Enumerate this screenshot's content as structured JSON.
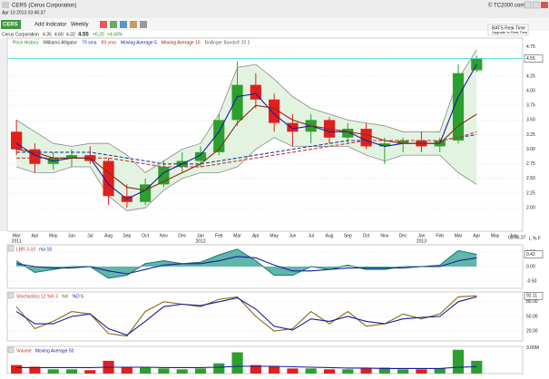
{
  "header": {
    "title": "CERS (Cerus Corporation)",
    "timestamp": "Apr 10 2013 03:45:37",
    "copyright": "© TC2000.com",
    "symbol": "CERS",
    "add_indicator": "Add Indicator",
    "period": "Weekly",
    "quote": {
      "name": "Cerus Corporation",
      "open": "4.35",
      "high": "4.60",
      "low": "4.32",
      "last": "4.55",
      "change": "+0.20",
      "change_pct": "+4.60%"
    },
    "feed": "BATS Real-Time",
    "feed_note": "Upgrade to Real-Time",
    "chart_time": "03:45:37",
    "scale_controls": "L % F"
  },
  "chart_data": [
    {
      "type": "candlestick",
      "other_indicators": [
        "Williams Alligator"
      ],
      "categories": [
        "Mar",
        "Apr",
        "May",
        "Jun",
        "Jul",
        "Aug",
        "Sep",
        "Oct",
        "Nov",
        "Dec",
        "Jan",
        "Feb",
        "Mar",
        "Apr",
        "May",
        "Jun",
        "Jul",
        "Aug",
        "Sep",
        "Oct",
        "Nov",
        "Dec",
        "Jan",
        "Feb",
        "Mar",
        "Apr",
        "May",
        "Jun"
      ],
      "category_years": [
        "2011",
        null,
        null,
        null,
        null,
        null,
        null,
        null,
        null,
        null,
        "2012",
        null,
        null,
        null,
        null,
        null,
        null,
        null,
        null,
        null,
        null,
        null,
        "2013",
        null,
        null,
        null,
        null,
        null
      ],
      "candles": {
        "name": "Price History",
        "up_color": "#2ca02c",
        "down_color": "#e0201b",
        "open": [
          3.3,
          3.0,
          2.75,
          2.85,
          2.9,
          2.8,
          2.2,
          2.1,
          2.4,
          2.7,
          2.8,
          2.95,
          3.5,
          4.1,
          3.85,
          3.45,
          3.3,
          3.5,
          3.2,
          3.35,
          3.05,
          3.1,
          3.15,
          3.05,
          3.15,
          4.35,
          null,
          null
        ],
        "high": [
          3.5,
          3.1,
          2.95,
          3.0,
          3.05,
          2.85,
          2.4,
          2.5,
          2.8,
          2.95,
          3.05,
          3.6,
          4.5,
          4.3,
          3.95,
          3.6,
          3.6,
          3.55,
          3.45,
          3.45,
          3.2,
          3.2,
          3.3,
          3.2,
          4.45,
          4.6,
          null,
          null
        ],
        "low": [
          2.9,
          2.6,
          2.65,
          2.7,
          2.75,
          2.05,
          2.0,
          2.05,
          2.35,
          2.6,
          2.7,
          2.9,
          3.4,
          3.7,
          3.3,
          3.05,
          3.1,
          3.1,
          3.1,
          3.0,
          2.75,
          2.95,
          2.95,
          2.95,
          3.1,
          4.32,
          null,
          null
        ],
        "close": [
          3.0,
          2.75,
          2.85,
          2.9,
          2.8,
          2.2,
          2.1,
          2.4,
          2.7,
          2.8,
          2.95,
          3.5,
          4.1,
          3.85,
          3.45,
          3.3,
          3.5,
          3.2,
          3.35,
          3.05,
          3.1,
          3.15,
          3.05,
          3.15,
          4.3,
          4.55,
          null,
          null
        ]
      },
      "series": [
        {
          "name": "79 sma",
          "color": "#1f3f9f",
          "dashed": true,
          "values": [
            2.95,
            2.95,
            2.95,
            2.95,
            2.95,
            2.9,
            2.85,
            2.8,
            2.75,
            2.75,
            2.75,
            2.8,
            2.85,
            2.9,
            2.95,
            3.0,
            3.05,
            3.1,
            3.15,
            3.15,
            3.15,
            3.15,
            3.15,
            3.15,
            3.2,
            3.25,
            null,
            null
          ]
        },
        {
          "name": "89 sma",
          "color": "#c0392b",
          "dashed": true,
          "values": [
            2.85,
            2.85,
            2.85,
            2.85,
            2.85,
            2.85,
            2.8,
            2.75,
            2.7,
            2.7,
            2.7,
            2.75,
            2.8,
            2.85,
            2.9,
            2.95,
            3.0,
            3.05,
            3.1,
            3.15,
            3.15,
            3.15,
            3.15,
            3.15,
            3.2,
            3.3,
            null,
            null
          ]
        },
        {
          "name": "Moving Average 5",
          "color": "#1a1aa0",
          "values": [
            3.1,
            2.9,
            2.8,
            2.85,
            2.85,
            2.4,
            2.15,
            2.3,
            2.6,
            2.75,
            2.9,
            3.3,
            3.9,
            3.95,
            3.6,
            3.35,
            3.4,
            3.3,
            3.3,
            3.15,
            3.05,
            3.1,
            3.1,
            3.1,
            3.9,
            4.45,
            null,
            null
          ]
        },
        {
          "name": "Moving Average 15",
          "color": "#8b2a1a",
          "values": [
            3.0,
            2.95,
            2.85,
            2.85,
            2.85,
            2.6,
            2.35,
            2.3,
            2.45,
            2.6,
            2.75,
            3.0,
            3.45,
            3.75,
            3.7,
            3.5,
            3.4,
            3.35,
            3.3,
            3.25,
            3.15,
            3.1,
            3.1,
            3.1,
            3.4,
            3.6,
            null,
            null
          ]
        }
      ],
      "bands": {
        "name": "Bollinger Bands® 20 2",
        "color": "#8a8a8a",
        "fill": "#e3f3e1",
        "upper": [
          3.5,
          3.3,
          3.1,
          3.05,
          3.1,
          3.1,
          2.9,
          2.6,
          2.8,
          3.0,
          3.1,
          3.6,
          4.4,
          4.45,
          4.2,
          3.9,
          3.7,
          3.6,
          3.5,
          3.45,
          3.4,
          3.3,
          3.3,
          3.3,
          4.2,
          4.7,
          null,
          null
        ],
        "lower": [
          2.7,
          2.6,
          2.6,
          2.7,
          2.7,
          2.2,
          1.95,
          2.0,
          2.3,
          2.5,
          2.6,
          2.6,
          2.7,
          3.0,
          3.2,
          3.05,
          3.05,
          3.05,
          3.05,
          2.9,
          2.8,
          2.9,
          2.9,
          2.9,
          2.6,
          2.4,
          null,
          null
        ]
      },
      "price_line_color": "#33cccc",
      "ylim": [
        1.6,
        4.9
      ],
      "yticks": [
        {
          "value": 2,
          "label": "2.00"
        },
        {
          "value": 2.25,
          "label": "2.25"
        },
        {
          "value": 2.5,
          "label": "2.50"
        },
        {
          "value": 2.75,
          "label": "2.75"
        },
        {
          "value": 3,
          "label": "3.00"
        },
        {
          "value": 3.25,
          "label": "3.25"
        },
        {
          "value": 3.5,
          "label": "3.50"
        },
        {
          "value": 3.75,
          "label": "3.75"
        },
        {
          "value": 4,
          "label": "4.00"
        },
        {
          "value": 4.25,
          "label": "4.25"
        },
        {
          "value": 4.5,
          "label": "4.50"
        },
        {
          "value": 4.75,
          "label": "4.75"
        }
      ],
      "grid": true
    },
    {
      "type": "area",
      "title": "LBR 3-10",
      "series": [
        {
          "name": "LBR 3-10",
          "color": "#2a9d8f",
          "values": [
            0.2,
            -0.2,
            -0.1,
            0,
            0,
            -0.4,
            -0.3,
            0.1,
            0.2,
            0.1,
            0.15,
            0.4,
            0.6,
            0.2,
            -0.3,
            -0.3,
            0,
            -0.1,
            0.05,
            -0.1,
            -0.1,
            0,
            0,
            0.05,
            0.55,
            0.42,
            null,
            null
          ]
        },
        {
          "name": "ma 16",
          "color": "#1a1aa0",
          "values": [
            0.1,
            0,
            -0.05,
            -0.05,
            0,
            -0.15,
            -0.25,
            -0.1,
            0.05,
            0.1,
            0.1,
            0.2,
            0.35,
            0.3,
            0.05,
            -0.15,
            -0.15,
            -0.1,
            -0.05,
            -0.05,
            -0.05,
            -0.05,
            0,
            0,
            0.2,
            0.3,
            null,
            null
          ]
        }
      ],
      "ylim": [
        -0.75,
        0.75
      ],
      "yticks": [
        {
          "value": -0.5,
          "label": "-0.50"
        },
        {
          "value": 0,
          "label": "0.00"
        },
        {
          "value": 0.5,
          "label": "0.50"
        }
      ],
      "grid": true
    },
    {
      "type": "line",
      "title": "Stochastics 12 %K 3",
      "series": [
        {
          "name": "%K",
          "color": "#8b6914",
          "values": [
            70,
            25,
            40,
            60,
            55,
            15,
            10,
            60,
            80,
            75,
            70,
            85,
            90,
            50,
            20,
            25,
            60,
            35,
            60,
            30,
            35,
            55,
            45,
            55,
            90,
            92.11,
            null,
            null
          ]
        },
        {
          "name": "%D 5",
          "color": "#1a1aa0",
          "values": [
            60,
            35,
            35,
            50,
            55,
            25,
            12,
            40,
            70,
            75,
            72,
            80,
            88,
            65,
            30,
            22,
            45,
            40,
            50,
            40,
            35,
            45,
            48,
            50,
            80,
            90,
            null,
            null
          ]
        }
      ],
      "ylim": [
        0,
        100
      ],
      "yticks": [
        {
          "value": 20,
          "label": "20.00"
        },
        {
          "value": 50,
          "label": "50.00"
        },
        {
          "value": 80,
          "label": "80.00"
        }
      ],
      "grid": true
    },
    {
      "type": "bar",
      "title": "Volume",
      "series": [
        {
          "name": "Volume",
          "values": [
            1.0,
            0.8,
            0.5,
            0.5,
            0.4,
            1.5,
            0.8,
            0.7,
            0.6,
            0.5,
            0.6,
            1.2,
            2.5,
            1.0,
            0.8,
            0.6,
            0.6,
            0.5,
            0.5,
            0.6,
            0.7,
            0.5,
            0.5,
            0.6,
            2.8,
            1.5,
            null,
            null
          ]
        },
        {
          "name": "Moving Average 50",
          "color": "#1a1aa0",
          "values": [
            0.7,
            0.7,
            0.7,
            0.7,
            0.7,
            0.75,
            0.75,
            0.75,
            0.7,
            0.7,
            0.7,
            0.75,
            0.85,
            0.85,
            0.85,
            0.8,
            0.75,
            0.7,
            0.65,
            0.65,
            0.6,
            0.6,
            0.6,
            0.6,
            0.75,
            0.8,
            null,
            null
          ]
        }
      ],
      "ylim": [
        0,
        3.2
      ],
      "yticks": [
        {
          "value": 3,
          "label": "3.00M"
        }
      ],
      "grid": false
    }
  ]
}
